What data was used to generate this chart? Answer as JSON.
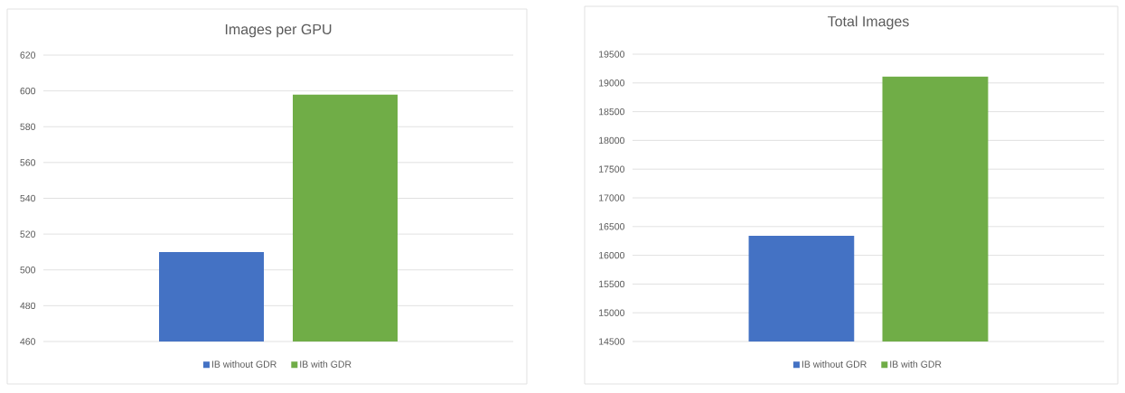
{
  "chart_data": [
    {
      "type": "bar",
      "title": "Images per GPU",
      "categories": [
        null
      ],
      "series": [
        {
          "name": "IB without GDR",
          "color": "#4472c4",
          "values": [
            510
          ]
        },
        {
          "name": "IB with GDR",
          "color": "#70ad47",
          "values": [
            598
          ]
        }
      ],
      "ylim": [
        460,
        620
      ],
      "yticks": [
        460,
        480,
        500,
        520,
        540,
        560,
        580,
        600,
        620
      ],
      "grid": "y",
      "legend": "bottom"
    },
    {
      "type": "bar",
      "title": "Total Images",
      "categories": [
        null
      ],
      "series": [
        {
          "name": "IB without GDR",
          "color": "#4472c4",
          "values": [
            16340
          ]
        },
        {
          "name": "IB with GDR",
          "color": "#70ad47",
          "values": [
            19110
          ]
        }
      ],
      "ylim": [
        14500,
        19500
      ],
      "yticks": [
        14500,
        15000,
        15500,
        16000,
        16500,
        17000,
        17500,
        18000,
        18500,
        19000,
        19500
      ],
      "grid": "y",
      "legend": "bottom"
    }
  ]
}
